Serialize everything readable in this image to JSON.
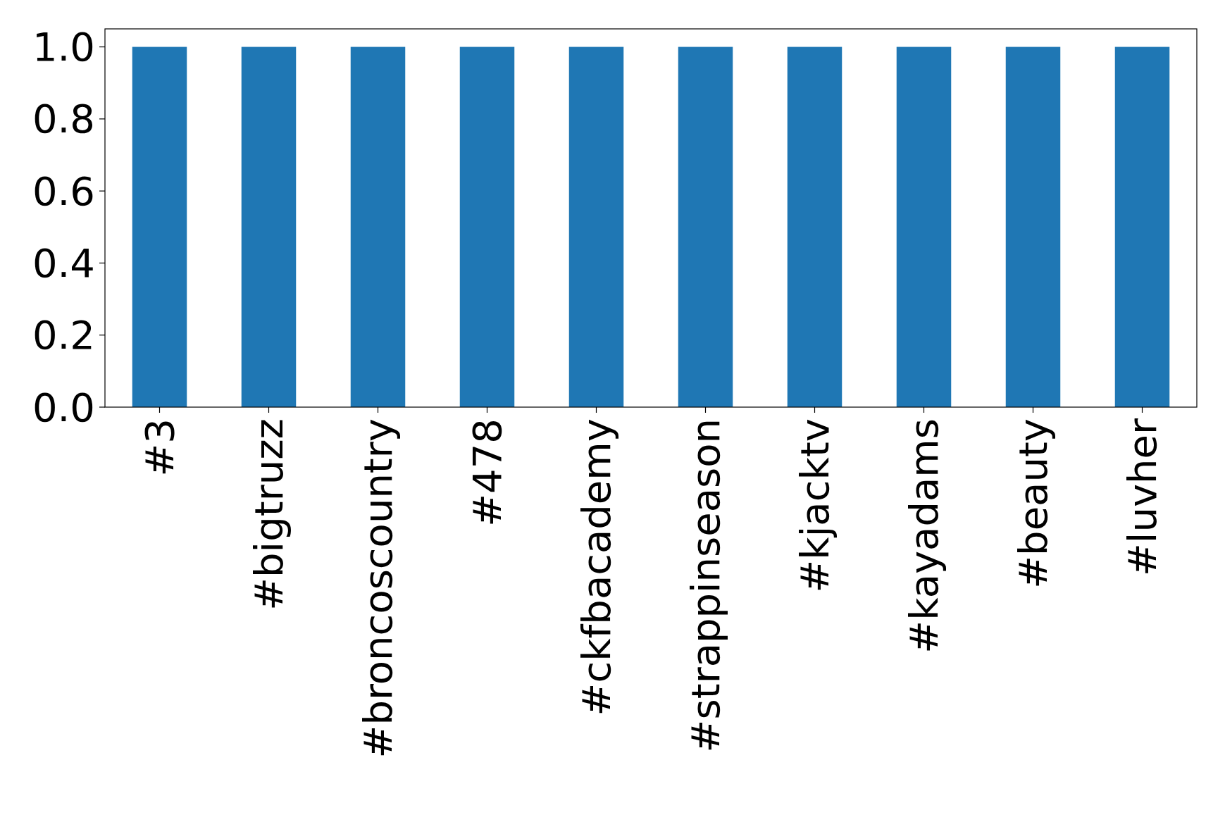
{
  "chart_data": {
    "type": "bar",
    "categories": [
      "#3",
      "#bigtruzz",
      "#broncoscountry",
      "#478",
      "#ckfbacademy",
      "#strappinseason",
      "#kjacktv",
      "#kayadams",
      "#beauty",
      "#luvher"
    ],
    "values": [
      1,
      1,
      1,
      1,
      1,
      1,
      1,
      1,
      1,
      1
    ],
    "color": "#1f77b4",
    "ylim": [
      0,
      1.05
    ],
    "yticks": [
      {
        "value": 0,
        "label": "0.0"
      },
      {
        "value": 0.2,
        "label": "0.2"
      },
      {
        "value": 0.4,
        "label": "0.4"
      },
      {
        "value": 0.6,
        "label": "0.6"
      },
      {
        "value": 0.8,
        "label": "0.8"
      },
      {
        "value": 1,
        "label": "1.0"
      }
    ],
    "grid": false
  }
}
